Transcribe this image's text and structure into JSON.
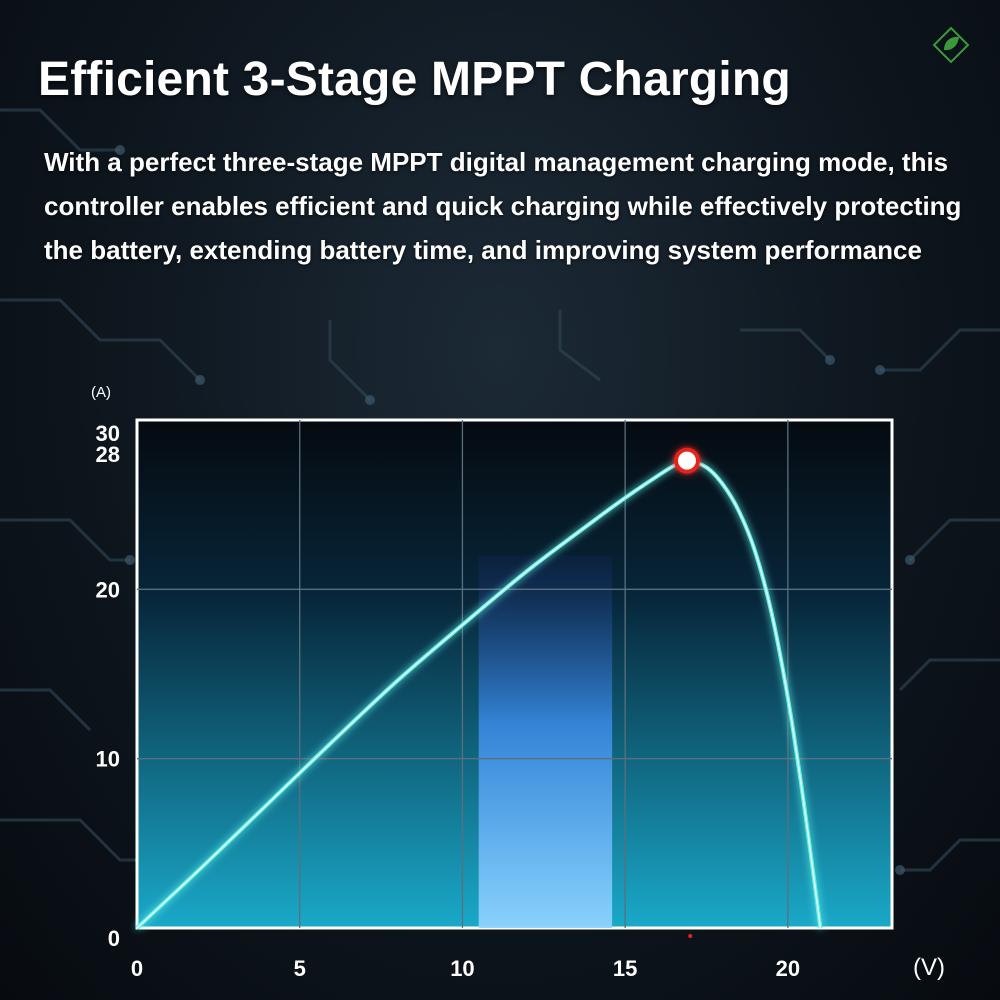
{
  "header": {
    "title": "Efficient 3-Stage MPPT Charging",
    "description": "With a perfect three-stage MPPT digital management charging mode, this controller enables efficient and quick charging while effectively protecting the battery, extending battery time, and improving system performance"
  },
  "logo": {
    "icon": "leaf-diamond-icon",
    "color": "#3a9a3a"
  },
  "colors": {
    "curve": "#5ff0e6",
    "peak_marker": "#e8231c",
    "highlight_band": "#4aa8ff",
    "plot_bg_bottom": "#1aa9c9"
  },
  "chart_data": {
    "type": "line",
    "title": "",
    "xlabel": "(V)",
    "ylabel": "(A)",
    "xlim": [
      0,
      23.2
    ],
    "ylim": [
      0,
      30
    ],
    "x_ticks": [
      "0",
      "5",
      "10",
      "15",
      "20"
    ],
    "y_ticks": [
      "0",
      "10",
      "20",
      "28",
      "30"
    ],
    "grid": true,
    "series": [
      {
        "x": [
          0,
          2,
          4,
          6,
          8,
          10,
          12,
          14,
          15,
          16,
          16.5,
          16.9,
          17.5,
          18,
          18.5,
          19,
          19.5,
          20,
          20.4,
          20.7,
          20.9,
          21.0
        ],
        "y": [
          0,
          3.6,
          7.3,
          11.0,
          14.6,
          17.9,
          21.1,
          24.0,
          25.4,
          26.7,
          27.3,
          27.6,
          27.2,
          26.2,
          24.6,
          22.2,
          18.6,
          13.6,
          8.6,
          4.4,
          1.5,
          0
        ]
      }
    ],
    "highlight_band": {
      "x_from": 10.5,
      "x_to": 14.6
    },
    "peak_point": {
      "x": 16.9,
      "y": 27.6
    }
  }
}
